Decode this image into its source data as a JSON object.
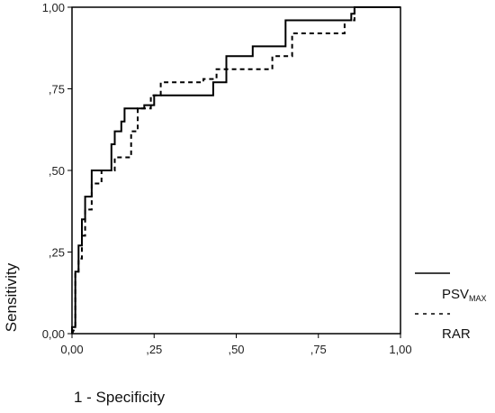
{
  "chart_data": {
    "type": "line",
    "title": "",
    "xlabel": "1 - Specificity",
    "ylabel": "Sensitivity",
    "xlim": [
      0,
      1
    ],
    "ylim": [
      0,
      1
    ],
    "x_ticks": [
      0,
      0.25,
      0.5,
      0.75,
      1
    ],
    "y_ticks": [
      0,
      0.25,
      0.5,
      0.75,
      1
    ],
    "x_tick_labels": [
      "0,00",
      ",25",
      ",50",
      ",75",
      "1,00"
    ],
    "y_tick_labels": [
      "0,00",
      ",25",
      ",50",
      ",75",
      "1,00"
    ],
    "grid": false,
    "legend": "right",
    "series": [
      {
        "name": "PSV",
        "name_sub": "MAX",
        "style": "solid",
        "color": "#000000",
        "points": [
          [
            0,
            0
          ],
          [
            0,
            0.02
          ],
          [
            0.01,
            0.02
          ],
          [
            0.01,
            0.19
          ],
          [
            0.02,
            0.19
          ],
          [
            0.02,
            0.27
          ],
          [
            0.03,
            0.27
          ],
          [
            0.03,
            0.35
          ],
          [
            0.04,
            0.35
          ],
          [
            0.04,
            0.42
          ],
          [
            0.06,
            0.42
          ],
          [
            0.06,
            0.5
          ],
          [
            0.12,
            0.5
          ],
          [
            0.12,
            0.58
          ],
          [
            0.13,
            0.58
          ],
          [
            0.13,
            0.62
          ],
          [
            0.15,
            0.62
          ],
          [
            0.15,
            0.65
          ],
          [
            0.16,
            0.65
          ],
          [
            0.16,
            0.69
          ],
          [
            0.22,
            0.69
          ],
          [
            0.22,
            0.7
          ],
          [
            0.25,
            0.7
          ],
          [
            0.25,
            0.73
          ],
          [
            0.43,
            0.73
          ],
          [
            0.43,
            0.77
          ],
          [
            0.47,
            0.77
          ],
          [
            0.47,
            0.85
          ],
          [
            0.55,
            0.85
          ],
          [
            0.55,
            0.88
          ],
          [
            0.65,
            0.88
          ],
          [
            0.65,
            0.96
          ],
          [
            0.85,
            0.96
          ],
          [
            0.85,
            0.98
          ],
          [
            0.86,
            0.98
          ],
          [
            0.86,
            1
          ],
          [
            1,
            1
          ]
        ]
      },
      {
        "name": "RAR",
        "style": "dashed",
        "color": "#000000",
        "points": [
          [
            0,
            0
          ],
          [
            0.01,
            0.02
          ],
          [
            0.01,
            0.19
          ],
          [
            0.02,
            0.19
          ],
          [
            0.02,
            0.23
          ],
          [
            0.03,
            0.23
          ],
          [
            0.03,
            0.3
          ],
          [
            0.04,
            0.3
          ],
          [
            0.04,
            0.38
          ],
          [
            0.06,
            0.38
          ],
          [
            0.06,
            0.46
          ],
          [
            0.09,
            0.46
          ],
          [
            0.09,
            0.5
          ],
          [
            0.13,
            0.5
          ],
          [
            0.13,
            0.54
          ],
          [
            0.18,
            0.54
          ],
          [
            0.18,
            0.62
          ],
          [
            0.2,
            0.62
          ],
          [
            0.2,
            0.69
          ],
          [
            0.24,
            0.69
          ],
          [
            0.24,
            0.73
          ],
          [
            0.27,
            0.73
          ],
          [
            0.27,
            0.77
          ],
          [
            0.4,
            0.77
          ],
          [
            0.4,
            0.78
          ],
          [
            0.44,
            0.78
          ],
          [
            0.44,
            0.81
          ],
          [
            0.61,
            0.81
          ],
          [
            0.61,
            0.85
          ],
          [
            0.67,
            0.85
          ],
          [
            0.67,
            0.92
          ],
          [
            0.83,
            0.92
          ],
          [
            0.83,
            0.96
          ],
          [
            0.86,
            0.96
          ],
          [
            0.86,
            1
          ],
          [
            1,
            1
          ]
        ]
      }
    ]
  }
}
